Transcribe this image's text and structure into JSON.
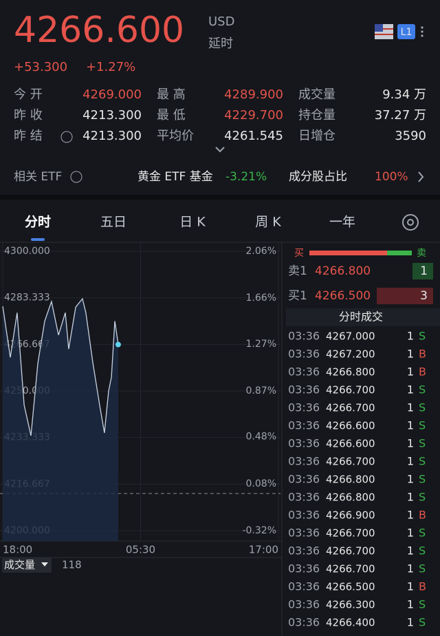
{
  "header": {
    "price": "4266.600",
    "currency": "USD",
    "status": "延时",
    "badge": "L1",
    "change": "+53.300",
    "change_pct": "+1.27%"
  },
  "stats": [
    [
      {
        "label": "今 开",
        "value": "4269.000",
        "color": "#e5534b"
      },
      {
        "label": "最 高",
        "value": "4289.900",
        "color": "#e5534b"
      },
      {
        "label": "成交量",
        "value": "9.34 万",
        "color": "#e8e8e8"
      }
    ],
    [
      {
        "label": "昨 收",
        "value": "4213.300",
        "color": "#e8e8e8"
      },
      {
        "label": "最 低",
        "value": "4229.700",
        "color": "#e5534b"
      },
      {
        "label": "持仓量",
        "value": "37.27 万",
        "color": "#e8e8e8"
      }
    ],
    [
      {
        "label": "昨 结",
        "value": "4213.300",
        "color": "#e8e8e8"
      },
      {
        "label": "平均价",
        "value": "4261.545",
        "color": "#e8e8e8"
      },
      {
        "label": "日增仓",
        "value": "3590",
        "color": "#e8e8e8"
      }
    ]
  ],
  "etf": {
    "label": "相关 ETF",
    "fund": "黄金 ETF 基金",
    "fund_change": "-3.21%",
    "component": "成分股占比",
    "component_value": "100%"
  },
  "tabs": [
    "分时",
    "五日",
    "日 K",
    "周 K",
    "一年"
  ],
  "chart_data": {
    "type": "line",
    "color": "#c9d3e3",
    "x": [
      0,
      38,
      72,
      107,
      141,
      176,
      210,
      244,
      279,
      313,
      330,
      365,
      399,
      416,
      451,
      485,
      509,
      530,
      544,
      561,
      578
    ],
    "values": [
      4280.3,
      4262,
      4278,
      4245,
      4234,
      4260,
      4275,
      4282,
      4270,
      4278,
      4265,
      4280,
      4283,
      4278,
      4260,
      4245,
      4235,
      4250,
      4255,
      4275,
      4266.6
    ],
    "baseline": 4213.3,
    "xlim": [
      0,
      1380
    ],
    "xticks": [
      {
        "value": 0,
        "label": "18:00"
      },
      {
        "value": 690,
        "label": "05:30"
      },
      {
        "value": 1380,
        "label": "17:00"
      }
    ],
    "ylim": [
      4200,
      4300
    ],
    "yticks": [
      {
        "value": 4300,
        "label": "4300.000"
      },
      {
        "value": 4283.333,
        "label": "4283.333"
      },
      {
        "value": 4266.667,
        "label": "4266.667"
      },
      {
        "value": 4250,
        "label": "4250.000"
      },
      {
        "value": 4233.333,
        "label": "4233.333"
      },
      {
        "value": 4216.667,
        "label": "4216.667"
      },
      {
        "value": 4200,
        "label": "4200.000"
      }
    ],
    "y2lim": [
      -0.32,
      2.06
    ],
    "y2ticks": [
      {
        "value": 2.06,
        "label": "2.06%"
      },
      {
        "value": 1.66,
        "label": "1.66%"
      },
      {
        "value": 1.27,
        "label": "1.27%"
      },
      {
        "value": 0.87,
        "label": "0.87%"
      },
      {
        "value": 0.48,
        "label": "0.48%"
      },
      {
        "value": 0.08,
        "label": "0.08%"
      },
      {
        "value": -0.32,
        "label": "-0.32%"
      }
    ],
    "grid": true
  },
  "volume": {
    "label": "成交量",
    "value": "118"
  },
  "order_book": {
    "buy": "买",
    "sell": "卖",
    "asks": [
      {
        "label": "卖1",
        "price": "4266.800",
        "qty": "1"
      }
    ],
    "bids": [
      {
        "label": "买1",
        "price": "4266.500",
        "qty": "3"
      }
    ]
  },
  "trades": {
    "title": "分时成交",
    "rows": [
      [
        "03:36",
        "4267.000",
        "1",
        "S"
      ],
      [
        "03:36",
        "4267.200",
        "1",
        "B"
      ],
      [
        "03:36",
        "4266.800",
        "1",
        "B"
      ],
      [
        "03:36",
        "4266.700",
        "1",
        "S"
      ],
      [
        "03:36",
        "4266.700",
        "1",
        "S"
      ],
      [
        "03:36",
        "4266.600",
        "1",
        "S"
      ],
      [
        "03:36",
        "4266.600",
        "1",
        "S"
      ],
      [
        "03:36",
        "4266.700",
        "1",
        "S"
      ],
      [
        "03:36",
        "4266.800",
        "1",
        "S"
      ],
      [
        "03:36",
        "4266.800",
        "1",
        "S"
      ],
      [
        "03:36",
        "4266.900",
        "1",
        "B"
      ],
      [
        "03:36",
        "4266.700",
        "1",
        "S"
      ],
      [
        "03:36",
        "4266.700",
        "1",
        "S"
      ],
      [
        "03:36",
        "4266.700",
        "1",
        "S"
      ],
      [
        "03:36",
        "4266.500",
        "1",
        "B"
      ],
      [
        "03:36",
        "4266.300",
        "1",
        "S"
      ],
      [
        "03:36",
        "4266.400",
        "1",
        "S"
      ]
    ]
  }
}
